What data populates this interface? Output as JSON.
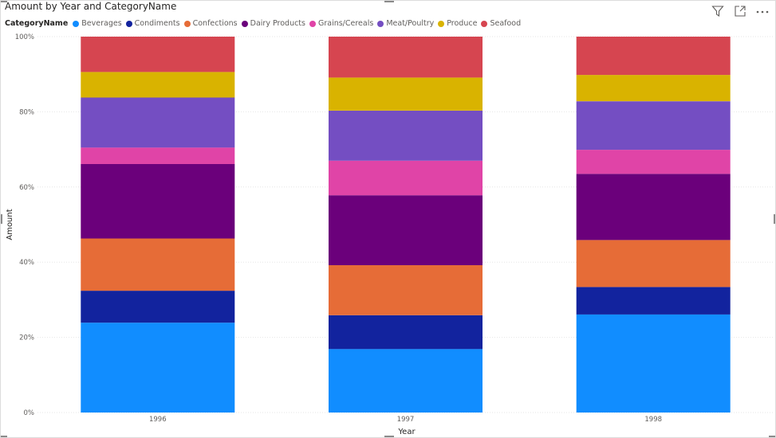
{
  "visual": {
    "title": "Amount by Year and CategoryName"
  },
  "toolbar": {
    "icons": [
      "filter-icon",
      "focus-mode-icon",
      "more-options-icon"
    ]
  },
  "legend": {
    "title": "CategoryName",
    "placement": "top-left",
    "items": [
      {
        "label": "Beverages",
        "color": "#118DFF"
      },
      {
        "label": "Condiments",
        "color": "#12239E"
      },
      {
        "label": "Confections",
        "color": "#E66C37"
      },
      {
        "label": "Dairy Products",
        "color": "#6B007B"
      },
      {
        "label": "Grains/Cereals",
        "color": "#E044A7"
      },
      {
        "label": "Meat/Poultry",
        "color": "#744EC2"
      },
      {
        "label": "Produce",
        "color": "#D9B300"
      },
      {
        "label": "Seafood",
        "color": "#D64550"
      }
    ]
  },
  "chart_data": {
    "type": "bar",
    "stacking": "100%",
    "title": "Amount by Year and CategoryName",
    "xlabel": "Year",
    "ylabel": "Amount",
    "categories": [
      "1996",
      "1997",
      "1998"
    ],
    "ylim": [
      0,
      100
    ],
    "yticks": [
      "0%",
      "20%",
      "40%",
      "60%",
      "80%",
      "100%"
    ],
    "grid": true,
    "legend_placement": "top-left",
    "series": [
      {
        "name": "Beverages",
        "color": "#118DFF",
        "values": [
          23.9,
          16.9,
          26.1
        ]
      },
      {
        "name": "Condiments",
        "color": "#12239E",
        "values": [
          8.5,
          9.0,
          7.3
        ]
      },
      {
        "name": "Confections",
        "color": "#E66C37",
        "values": [
          13.9,
          13.3,
          12.5
        ]
      },
      {
        "name": "Dairy Products",
        "color": "#6B007B",
        "values": [
          19.8,
          18.6,
          17.6
        ]
      },
      {
        "name": "Grains/Cereals",
        "color": "#E044A7",
        "values": [
          4.4,
          9.2,
          6.4
        ]
      },
      {
        "name": "Meat/Poultry",
        "color": "#744EC2",
        "values": [
          13.3,
          13.3,
          12.9
        ]
      },
      {
        "name": "Produce",
        "color": "#D9B300",
        "values": [
          6.8,
          8.8,
          7.0
        ]
      },
      {
        "name": "Seafood",
        "color": "#D64550",
        "values": [
          9.4,
          10.9,
          10.2
        ]
      }
    ]
  }
}
